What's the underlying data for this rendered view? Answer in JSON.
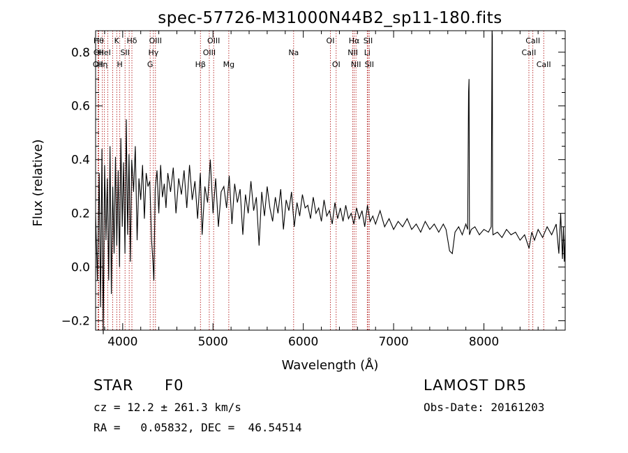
{
  "chart_data": {
    "type": "line",
    "title": "spec-57726-M31000N44B2_sp11-180.fits",
    "xlabel": "Wavelength (Å)",
    "ylabel": "Flux (relative)",
    "xlim": [
      3700,
      8900
    ],
    "ylim": [
      -0.235,
      0.88
    ],
    "xticks": [
      4000,
      5000,
      6000,
      7000,
      8000
    ],
    "yticks": [
      -0.2,
      0.0,
      0.2,
      0.4,
      0.6,
      0.8
    ],
    "xtick_labels": [
      "4000",
      "5000",
      "6000",
      "7000",
      "8000"
    ],
    "ytick_labels": [
      "−0.2",
      "0.0",
      "0.2",
      "0.4",
      "0.6",
      "0.8"
    ],
    "grid": false,
    "series": [
      {
        "x": [
          3700,
          3720,
          3740,
          3755,
          3770,
          3785,
          3800,
          3815,
          3830,
          3845,
          3860,
          3875,
          3890,
          3905,
          3920,
          3935,
          3950,
          3965,
          3980,
          3995,
          4010,
          4025,
          4040,
          4055,
          4070,
          4085,
          4100,
          4120,
          4140,
          4160,
          4180,
          4200,
          4220,
          4240,
          4260,
          4280,
          4300,
          4320,
          4335,
          4345,
          4360,
          4380,
          4400,
          4420,
          4440,
          4460,
          4480,
          4500,
          4530,
          4560,
          4590,
          4620,
          4650,
          4680,
          4710,
          4740,
          4770,
          4800,
          4830,
          4860,
          4880,
          4910,
          4940,
          4970,
          5000,
          5030,
          5060,
          5090,
          5120,
          5150,
          5180,
          5210,
          5240,
          5270,
          5300,
          5330,
          5360,
          5390,
          5420,
          5450,
          5480,
          5510,
          5540,
          5570,
          5600,
          5630,
          5660,
          5690,
          5720,
          5750,
          5780,
          5810,
          5840,
          5870,
          5900,
          5930,
          5960,
          5990,
          6020,
          6050,
          6080,
          6110,
          6140,
          6170,
          6200,
          6230,
          6260,
          6290,
          6320,
          6350,
          6380,
          6410,
          6440,
          6470,
          6500,
          6530,
          6560,
          6590,
          6620,
          6650,
          6680,
          6710,
          6740,
          6770,
          6800,
          6850,
          6900,
          6950,
          7000,
          7050,
          7100,
          7150,
          7200,
          7250,
          7300,
          7350,
          7400,
          7450,
          7500,
          7550,
          7580,
          7600,
          7620,
          7650,
          7680,
          7720,
          7760,
          7800,
          7820,
          7830,
          7835,
          7840,
          7860,
          7900,
          7950,
          8000,
          8050,
          8080,
          8090,
          8093,
          8096,
          8100,
          8150,
          8200,
          8250,
          8300,
          8350,
          8400,
          8450,
          8500,
          8530,
          8560,
          8600,
          8650,
          8700,
          8750,
          8800,
          8830,
          8850,
          8870,
          8880,
          8890,
          8900
        ],
        "values": [
          0.2,
          -0.05,
          0.35,
          -0.15,
          0.44,
          -0.25,
          0.38,
          0.1,
          0.33,
          -0.05,
          0.45,
          -0.1,
          0.3,
          0.05,
          0.41,
          0.08,
          0.36,
          0.0,
          0.48,
          0.15,
          0.39,
          0.05,
          0.55,
          0.12,
          0.42,
          0.02,
          0.4,
          0.28,
          0.45,
          0.1,
          0.33,
          0.25,
          0.38,
          0.18,
          0.35,
          0.3,
          0.32,
          0.1,
          0.02,
          -0.05,
          0.29,
          0.36,
          0.2,
          0.38,
          0.26,
          0.31,
          0.22,
          0.35,
          0.28,
          0.37,
          0.2,
          0.33,
          0.27,
          0.36,
          0.22,
          0.38,
          0.25,
          0.32,
          0.18,
          0.35,
          0.12,
          0.3,
          0.24,
          0.4,
          0.2,
          0.33,
          0.15,
          0.28,
          0.3,
          0.22,
          0.34,
          0.16,
          0.31,
          0.24,
          0.29,
          0.12,
          0.27,
          0.2,
          0.32,
          0.21,
          0.26,
          0.08,
          0.28,
          0.19,
          0.3,
          0.22,
          0.17,
          0.26,
          0.2,
          0.29,
          0.14,
          0.25,
          0.21,
          0.28,
          0.15,
          0.24,
          0.19,
          0.27,
          0.22,
          0.23,
          0.18,
          0.26,
          0.2,
          0.22,
          0.17,
          0.25,
          0.19,
          0.21,
          0.16,
          0.24,
          0.18,
          0.22,
          0.17,
          0.23,
          0.18,
          0.2,
          0.16,
          0.22,
          0.18,
          0.21,
          0.15,
          0.23,
          0.17,
          0.19,
          0.16,
          0.21,
          0.15,
          0.18,
          0.14,
          0.17,
          0.15,
          0.18,
          0.14,
          0.16,
          0.13,
          0.17,
          0.14,
          0.16,
          0.13,
          0.16,
          0.14,
          0.1,
          0.06,
          0.05,
          0.13,
          0.15,
          0.12,
          0.16,
          0.14,
          0.65,
          0.7,
          0.12,
          0.14,
          0.15,
          0.12,
          0.14,
          0.13,
          0.15,
          0.88,
          0.86,
          0.15,
          0.12,
          0.13,
          0.11,
          0.14,
          0.12,
          0.13,
          0.1,
          0.12,
          0.07,
          0.13,
          0.1,
          0.14,
          0.11,
          0.15,
          0.12,
          0.16,
          0.05,
          0.2,
          0.03,
          0.15,
          0.02,
          0.12
        ]
      }
    ],
    "annotations": [
      {
        "x": 3734,
        "label": "Hθ",
        "row": 0
      },
      {
        "x": 3734,
        "label": "OII",
        "row": 1
      },
      {
        "x": 3727,
        "label": "OII",
        "row": 2
      },
      {
        "x": 3775,
        "label": "Hη",
        "row": 2
      },
      {
        "x": 3798,
        "label": "HeI",
        "row": 1
      },
      {
        "x": 3835,
        "label": "",
        "row": -1
      },
      {
        "x": 3889,
        "label": "",
        "row": -1
      },
      {
        "x": 3934,
        "label": "K",
        "row": 0
      },
      {
        "x": 3968,
        "label": "H",
        "row": 2
      },
      {
        "x": 4026,
        "label": "SII",
        "row": 1
      },
      {
        "x": 4072,
        "label": "",
        "row": -1
      },
      {
        "x": 4102,
        "label": "Hδ",
        "row": 0
      },
      {
        "x": 4304,
        "label": "G",
        "row": 2
      },
      {
        "x": 4340,
        "label": "Hγ",
        "row": 1
      },
      {
        "x": 4363,
        "label": "OIII",
        "row": 0
      },
      {
        "x": 4861,
        "label": "Hβ",
        "row": 2
      },
      {
        "x": 4959,
        "label": "OIII",
        "row": 1
      },
      {
        "x": 5007,
        "label": "OIII",
        "row": 0
      },
      {
        "x": 5175,
        "label": "Mg",
        "row": 2
      },
      {
        "x": 5893,
        "label": "Na",
        "row": 1
      },
      {
        "x": 6300,
        "label": "OI",
        "row": 0
      },
      {
        "x": 6364,
        "label": "OI",
        "row": 2
      },
      {
        "x": 6548,
        "label": "NII",
        "row": 1
      },
      {
        "x": 6563,
        "label": "Hα",
        "row": 0
      },
      {
        "x": 6583,
        "label": "NII",
        "row": 2
      },
      {
        "x": 6708,
        "label": "Li",
        "row": 1
      },
      {
        "x": 6717,
        "label": "SII",
        "row": 0
      },
      {
        "x": 6731,
        "label": "SII",
        "row": 2
      },
      {
        "x": 8498,
        "label": "CaII",
        "row": 1
      },
      {
        "x": 8542,
        "label": "CaII",
        "row": 0
      },
      {
        "x": 8662,
        "label": "CaII",
        "row": 2
      }
    ]
  },
  "footer": {
    "class_label": "STAR",
    "subclass": "F0",
    "survey": "LAMOST DR5",
    "cz": "cz = 12.2 ± 261.3 km/s",
    "obs_date": "Obs-Date: 20161203",
    "radec": "RA =   0.05832, DEC =  46.54514"
  },
  "colors": {
    "line": "#000000",
    "marker": "#aa0000"
  }
}
